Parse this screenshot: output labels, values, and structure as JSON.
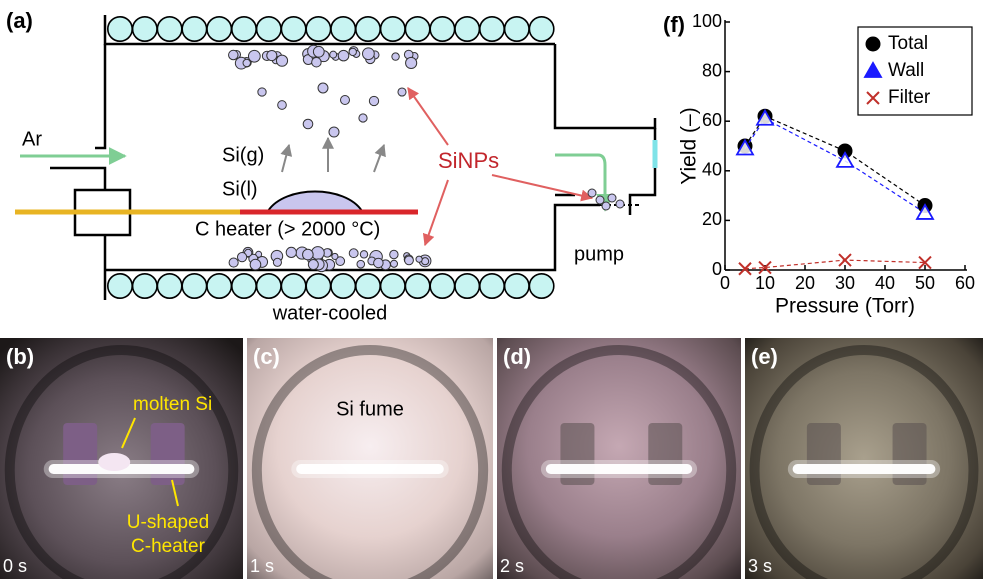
{
  "panel_a": {
    "label": "(a)",
    "gas": "Ar",
    "vapor": "Si(g)",
    "liquid": "Si(l)",
    "heater": "C heater (> 2000 °C)",
    "particles": "SiNPs",
    "pump": "pump",
    "wall": "water-cooled"
  },
  "chart_data": {
    "type": "line",
    "title": "(f)",
    "x_label": "Pressure (Torr)",
    "y_label": "Yield (–)",
    "x": [
      5,
      10,
      30,
      50
    ],
    "series": [
      {
        "name": "Total",
        "color": "#000000",
        "marker": "circle",
        "values": [
          50,
          62,
          48,
          26
        ]
      },
      {
        "name": "Wall",
        "color": "#1a1aff",
        "marker": "triangle",
        "values": [
          49,
          61,
          44,
          23
        ]
      },
      {
        "name": "Filter",
        "color": "#c0302a",
        "marker": "x",
        "values": [
          0.5,
          1,
          4,
          3
        ]
      }
    ],
    "xlim": [
      0,
      60
    ],
    "ylim": [
      0,
      100
    ],
    "xticks": [
      0,
      10,
      20,
      30,
      40,
      50,
      60
    ],
    "yticks": [
      0,
      20,
      40,
      60,
      80,
      100
    ],
    "legend": "upper right"
  },
  "photos": [
    {
      "label": "(b)",
      "time": "0 s"
    },
    {
      "label": "(c)",
      "time": "1 s"
    },
    {
      "label": "(d)",
      "time": "2 s"
    },
    {
      "label": "(e)",
      "time": "3 s"
    }
  ],
  "photo_notes": {
    "molten": "molten Si",
    "heater": [
      "U-shaped",
      "C-heater"
    ],
    "fume": "Si fume"
  }
}
